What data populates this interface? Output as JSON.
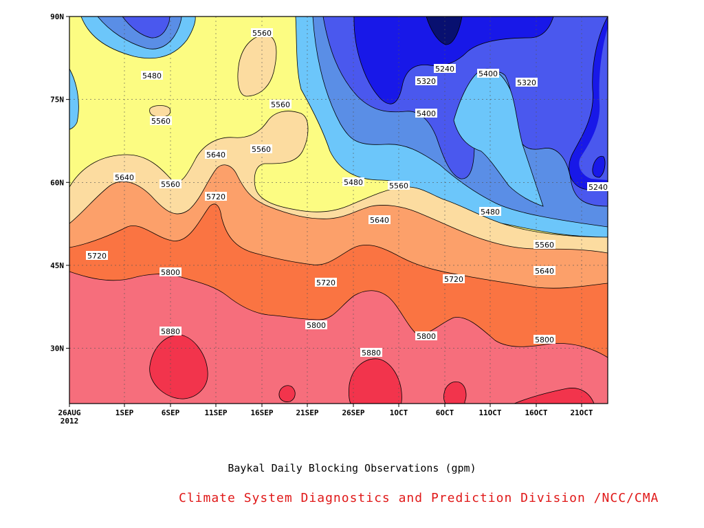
{
  "title": "Baykal Daily Blocking Observations (gpm)",
  "credit": "Climate System Diagnostics and Prediction Division /NCC/CMA",
  "chart_data": {
    "type": "contour",
    "title": "Baykal Daily Blocking Observations (gpm)",
    "units": "gpm",
    "x_axis": {
      "ticks": [
        "26AUG",
        "1SEP",
        "6SEP",
        "11SEP",
        "16SEP",
        "21SEP",
        "26SEP",
        "1OCT",
        "6OCT",
        "11OCT",
        "16OCT",
        "21OCT"
      ],
      "year_label": "2012",
      "range": [
        "2012-08-26",
        "2012-10-25"
      ]
    },
    "y_axis": {
      "ticks": [
        "90N",
        "75N",
        "60N",
        "45N",
        "30N"
      ],
      "range": [
        20,
        90
      ]
    },
    "contour_levels": [
      5240,
      5320,
      5400,
      5480,
      5560,
      5640,
      5720,
      5800,
      5880
    ],
    "fill_colors": {
      "below_5240": "#0a14a8",
      "5240_5320": "#1818e8",
      "5320_5400": "#4a58ee",
      "5400_5480": "#5a8ee6",
      "5480_5560": "#6cc6fa",
      "5560_5640": "#fcfc82",
      "5640_5720": "#fcdca0",
      "5720_5800": "#fca06a",
      "5800_5880": "#fa7442",
      "5880_5960": "#f66e7c",
      "above_5960": "#f2344c",
      "darkest": "#081070"
    },
    "contour_labels": [
      {
        "text": "5560"
      },
      {
        "text": "5480"
      },
      {
        "text": "5560"
      },
      {
        "text": "5560"
      },
      {
        "text": "5560"
      },
      {
        "text": "5640"
      },
      {
        "text": "5640"
      },
      {
        "text": "5560"
      },
      {
        "text": "5240"
      },
      {
        "text": "5320"
      },
      {
        "text": "5400"
      },
      {
        "text": "5400"
      },
      {
        "text": "5320"
      },
      {
        "text": "5480"
      },
      {
        "text": "5560"
      },
      {
        "text": "5720"
      },
      {
        "text": "5640"
      },
      {
        "text": "5480"
      },
      {
        "text": "5240"
      },
      {
        "text": "5720"
      },
      {
        "text": "5800"
      },
      {
        "text": "5720"
      },
      {
        "text": "5720"
      },
      {
        "text": "5560"
      },
      {
        "text": "5640"
      },
      {
        "text": "5880"
      },
      {
        "text": "5800"
      },
      {
        "text": "5880"
      },
      {
        "text": "5800"
      },
      {
        "text": "5800"
      }
    ]
  }
}
